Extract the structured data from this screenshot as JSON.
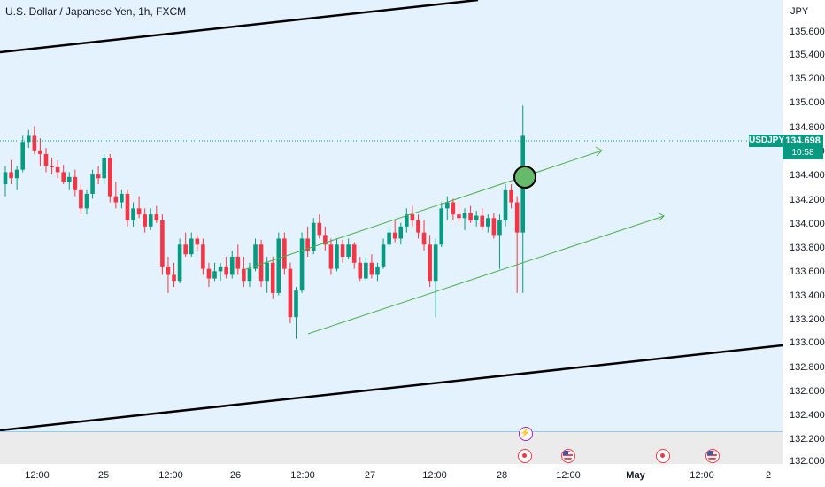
{
  "header": {
    "title": "U.S. Dollar / Japanese Yen, 1h, FXCM"
  },
  "price_axis": {
    "currency": "JPY",
    "ticks": [
      "135.600",
      "135.400",
      "135.200",
      "135.000",
      "134.800",
      "134.600",
      "134.400",
      "134.200",
      "134.000",
      "133.800",
      "133.600",
      "133.400",
      "133.200",
      "133.000",
      "132.800",
      "132.600",
      "132.400",
      "132.200",
      "132.000"
    ]
  },
  "time_axis": {
    "labels": [
      {
        "text": "12:00",
        "bold": false
      },
      {
        "text": "25",
        "bold": false
      },
      {
        "text": "12:00",
        "bold": false
      },
      {
        "text": "26",
        "bold": false
      },
      {
        "text": "12:00",
        "bold": false
      },
      {
        "text": "27",
        "bold": false
      },
      {
        "text": "12:00",
        "bold": false
      },
      {
        "text": "28",
        "bold": false
      },
      {
        "text": "12:00",
        "bold": false
      },
      {
        "text": "May",
        "bold": true
      },
      {
        "text": "12:00",
        "bold": false
      },
      {
        "text": "2",
        "bold": false
      }
    ]
  },
  "last_price": {
    "symbol": "USDJPY",
    "price": "134.698",
    "countdown": "10:58"
  },
  "colors": {
    "up": "#089981",
    "down": "#f23645",
    "background": "#e3f2fd",
    "channel": "#4caf50",
    "trendline": "#000000",
    "marker_fill": "#66bb6a"
  },
  "events": [
    {
      "icon": "lightning-icon"
    },
    {
      "icon": "economic-event-icon"
    },
    {
      "icon": "us-flag-icon"
    },
    {
      "icon": "economic-event-icon"
    },
    {
      "icon": "us-flag-icon"
    }
  ],
  "chart_data": {
    "type": "candlestick",
    "symbol": "USDJPY",
    "interval": "1h",
    "ylim": [
      132.0,
      135.7
    ],
    "candles": [
      [
        134.3,
        134.45,
        134.2,
        134.4
      ],
      [
        134.4,
        134.5,
        134.3,
        134.35
      ],
      [
        134.35,
        134.45,
        134.25,
        134.42
      ],
      [
        134.42,
        134.7,
        134.4,
        134.65
      ],
      [
        134.65,
        134.75,
        134.6,
        134.7
      ],
      [
        134.7,
        134.78,
        134.55,
        134.58
      ],
      [
        134.58,
        134.68,
        134.45,
        134.55
      ],
      [
        134.55,
        134.6,
        134.4,
        134.45
      ],
      [
        134.45,
        134.52,
        134.38,
        134.44
      ],
      [
        134.44,
        134.5,
        134.35,
        134.4
      ],
      [
        134.4,
        134.46,
        134.3,
        134.32
      ],
      [
        134.32,
        134.4,
        134.25,
        134.36
      ],
      [
        134.36,
        134.42,
        134.2,
        134.25
      ],
      [
        134.25,
        134.3,
        134.05,
        134.1
      ],
      [
        134.1,
        134.25,
        134.05,
        134.22
      ],
      [
        134.22,
        134.42,
        134.18,
        134.38
      ],
      [
        134.38,
        134.45,
        134.3,
        134.35
      ],
      [
        134.35,
        134.55,
        134.3,
        134.52
      ],
      [
        134.52,
        134.55,
        134.15,
        134.2
      ],
      [
        134.2,
        134.32,
        134.1,
        134.15
      ],
      [
        134.15,
        134.25,
        134.1,
        134.22
      ],
      [
        134.22,
        134.25,
        133.95,
        134.0
      ],
      [
        134.0,
        134.15,
        133.95,
        134.1
      ],
      [
        134.1,
        134.2,
        134.02,
        134.05
      ],
      [
        134.05,
        134.1,
        133.9,
        133.95
      ],
      [
        133.95,
        134.1,
        133.92,
        134.05
      ],
      [
        134.05,
        134.12,
        133.98,
        134.0
      ],
      [
        134.0,
        134.05,
        133.55,
        133.62
      ],
      [
        133.62,
        133.7,
        133.4,
        133.55
      ],
      [
        133.55,
        133.65,
        133.45,
        133.5
      ],
      [
        133.5,
        133.85,
        133.48,
        133.8
      ],
      [
        133.8,
        133.9,
        133.7,
        133.72
      ],
      [
        133.72,
        133.9,
        133.7,
        133.85
      ],
      [
        133.85,
        133.88,
        133.75,
        133.8
      ],
      [
        133.8,
        133.85,
        133.55,
        133.6
      ],
      [
        133.6,
        133.65,
        133.45,
        133.52
      ],
      [
        133.52,
        133.65,
        133.5,
        133.58
      ],
      [
        133.58,
        133.65,
        133.5,
        133.62
      ],
      [
        133.62,
        133.7,
        133.52,
        133.55
      ],
      [
        133.55,
        133.75,
        133.52,
        133.7
      ],
      [
        133.7,
        133.8,
        133.55,
        133.6
      ],
      [
        133.6,
        133.7,
        133.45,
        133.5
      ],
      [
        133.5,
        133.65,
        133.45,
        133.6
      ],
      [
        133.6,
        133.85,
        133.58,
        133.8
      ],
      [
        133.8,
        133.84,
        133.45,
        133.5
      ],
      [
        133.5,
        133.7,
        133.4,
        133.65
      ],
      [
        133.65,
        133.7,
        133.35,
        133.4
      ],
      [
        133.4,
        133.9,
        133.38,
        133.85
      ],
      [
        133.85,
        133.9,
        133.55,
        133.6
      ],
      [
        133.6,
        133.65,
        133.15,
        133.2
      ],
      [
        133.2,
        133.45,
        133.02,
        133.42
      ],
      [
        133.42,
        133.9,
        133.4,
        133.85
      ],
      [
        133.85,
        133.95,
        133.7,
        133.75
      ],
      [
        133.75,
        134.02,
        133.72,
        133.98
      ],
      [
        133.98,
        134.05,
        133.85,
        133.88
      ],
      [
        133.88,
        133.95,
        133.75,
        133.8
      ],
      [
        133.8,
        133.85,
        133.55,
        133.6
      ],
      [
        133.6,
        133.85,
        133.58,
        133.8
      ],
      [
        133.8,
        133.84,
        133.65,
        133.7
      ],
      [
        133.7,
        133.85,
        133.68,
        133.8
      ],
      [
        133.8,
        133.82,
        133.6,
        133.65
      ],
      [
        133.65,
        133.7,
        133.5,
        133.52
      ],
      [
        133.52,
        133.7,
        133.5,
        133.65
      ],
      [
        133.65,
        133.72,
        133.52,
        133.55
      ],
      [
        133.55,
        133.65,
        133.5,
        133.62
      ],
      [
        133.62,
        133.85,
        133.6,
        133.8
      ],
      [
        133.8,
        133.95,
        133.78,
        133.9
      ],
      [
        133.9,
        134.0,
        133.82,
        133.85
      ],
      [
        133.85,
        133.98,
        133.8,
        133.95
      ],
      [
        133.95,
        134.1,
        133.9,
        134.05
      ],
      [
        134.05,
        134.12,
        133.95,
        134.0
      ],
      [
        134.0,
        134.05,
        133.85,
        133.9
      ],
      [
        133.9,
        134.0,
        133.75,
        133.8
      ],
      [
        133.8,
        133.88,
        133.45,
        133.5
      ],
      [
        133.5,
        133.85,
        133.2,
        133.8
      ],
      [
        133.8,
        134.15,
        133.78,
        134.1
      ],
      [
        134.1,
        134.2,
        134.0,
        134.15
      ],
      [
        134.15,
        134.18,
        134.0,
        134.05
      ],
      [
        134.05,
        134.15,
        133.98,
        134.02
      ],
      [
        134.02,
        134.1,
        133.92,
        134.06
      ],
      [
        134.06,
        134.12,
        133.98,
        134.0
      ],
      [
        134.0,
        134.08,
        133.95,
        134.04
      ],
      [
        134.04,
        134.1,
        133.92,
        133.95
      ],
      [
        133.95,
        134.05,
        133.9,
        134.02
      ],
      [
        134.02,
        134.06,
        133.85,
        133.88
      ],
      [
        133.88,
        134.05,
        133.6,
        134.0
      ],
      [
        134.0,
        134.3,
        133.95,
        134.25
      ],
      [
        134.25,
        134.3,
        134.1,
        134.15
      ],
      [
        134.15,
        134.2,
        133.4,
        133.9
      ],
      [
        133.9,
        134.95,
        133.4,
        134.7
      ]
    ]
  }
}
